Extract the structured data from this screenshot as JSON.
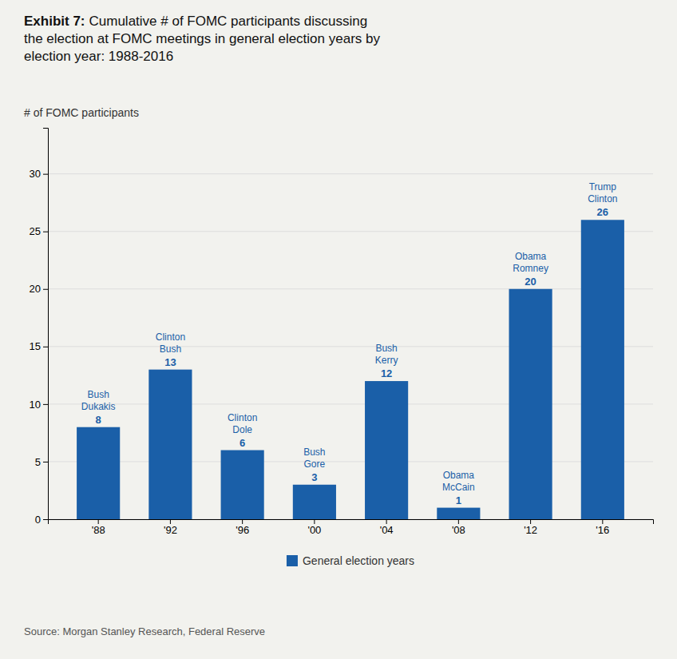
{
  "chart_data": {
    "type": "bar",
    "title": "Exhibit 7:",
    "subtitle": "Cumulative # of FOMC participants discussing\nthe election at FOMC meetings in general election years by\nelection year: 1988-2016",
    "y_label": "# of FOMC participants",
    "source": "Source: Morgan Stanley Research, Federal Reserve",
    "categories": [
      "'88",
      "'92",
      "'96",
      "'00",
      "'04",
      "'08",
      "'12",
      "'16"
    ],
    "series": [
      {
        "name": "General election years",
        "color": "#1a5fa8",
        "values": [
          8,
          13,
          6,
          3,
          12,
          1,
          20,
          26
        ]
      }
    ],
    "annotations": [
      [
        "Bush",
        "Dukakis"
      ],
      [
        "Clinton",
        "Bush"
      ],
      [
        "Clinton",
        "Dole"
      ],
      [
        "Bush",
        "Gore"
      ],
      [
        "Bush",
        "Kerry"
      ],
      [
        "Obama",
        "McCain"
      ],
      [
        "Obama",
        "Romney"
      ],
      [
        "Trump",
        "Clinton"
      ]
    ],
    "data_labels": true,
    "ylim": [
      0,
      34
    ],
    "yticks": [
      0,
      5,
      10,
      15,
      20,
      25,
      30
    ],
    "grid": true,
    "legend": "bottom"
  }
}
